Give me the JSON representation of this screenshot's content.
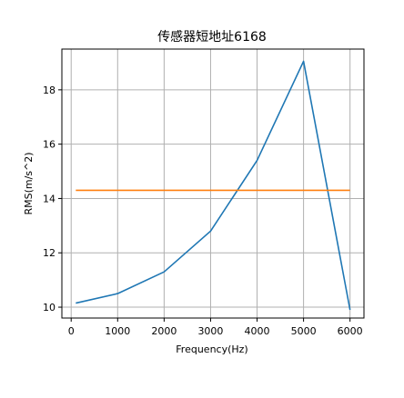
{
  "chart_data": {
    "type": "line",
    "title": "传感器短地址6168",
    "xlabel": "Frequency(Hz)",
    "ylabel": "RMS(m/s^2)",
    "xlim": [
      -200,
      6300
    ],
    "ylim": [
      9.6,
      19.5
    ],
    "xticks": [
      0,
      1000,
      2000,
      3000,
      4000,
      5000,
      6000
    ],
    "yticks": [
      10,
      12,
      14,
      16,
      18
    ],
    "grid": true,
    "series": [
      {
        "color": "#1f77b4",
        "x": [
          100,
          1000,
          2000,
          3000,
          4000,
          5000,
          6000
        ],
        "y": [
          10.15,
          10.5,
          11.3,
          12.8,
          15.4,
          19.05,
          9.9
        ]
      },
      {
        "color": "#ff7f0e",
        "x": [
          100,
          6000
        ],
        "y": [
          14.3,
          14.3
        ]
      }
    ]
  }
}
